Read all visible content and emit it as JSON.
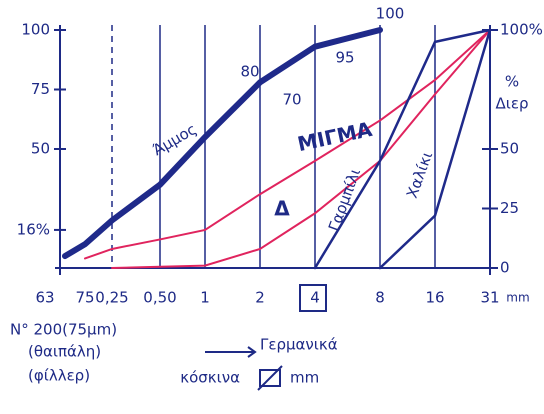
{
  "chart_data": {
    "type": "line",
    "categories": [
      "63",
      "75",
      "0,25",
      "0,50",
      "1",
      "2",
      "4",
      "8",
      "16",
      "31"
    ],
    "x_unit": "mm",
    "ylim": [
      0,
      100
    ],
    "yticks": [
      {
        "value": 100,
        "label": "100"
      },
      75,
      50,
      {
        "value": 16,
        "label": "16%"
      }
    ],
    "y2lim": [
      0,
      100
    ],
    "y2ticks": [
      {
        "value": 100,
        "label": "100%"
      },
      50,
      25,
      0
    ],
    "y2label": [
      "%",
      "Διερ"
    ],
    "series": [
      {
        "name": "Άμμος",
        "color": "#1f2a8a",
        "values": [
          5,
          10,
          20,
          35,
          55,
          78,
          93,
          100,
          null,
          null
        ]
      },
      {
        "name": "ΜΙΓΜΑ",
        "color": "#e0245e",
        "values": [
          null,
          4,
          8,
          12,
          16,
          31,
          45,
          62,
          79,
          100
        ]
      },
      {
        "color": "#e0245e",
        "values": [
          null,
          null,
          0,
          0.5,
          1,
          8,
          23,
          45,
          73,
          100
        ]
      },
      {
        "name": "Γαρμπίλι",
        "color": "#1f2a8a",
        "values": [
          null,
          null,
          null,
          null,
          null,
          null,
          0,
          45,
          95,
          100
        ]
      },
      {
        "name": "Χαλίκι",
        "color": "#1f2a8a",
        "values": [
          null,
          null,
          null,
          null,
          null,
          null,
          null,
          0,
          22,
          100
        ]
      }
    ],
    "annotations": [
      "80",
      "70",
      "95",
      "100",
      "Δ"
    ],
    "notes": [
      "N° 200(75μm)",
      "(θαιπάλη)",
      "(φίλλερ)",
      "Γερμανικά",
      "κόσκινα",
      "mm"
    ],
    "grid": true
  }
}
